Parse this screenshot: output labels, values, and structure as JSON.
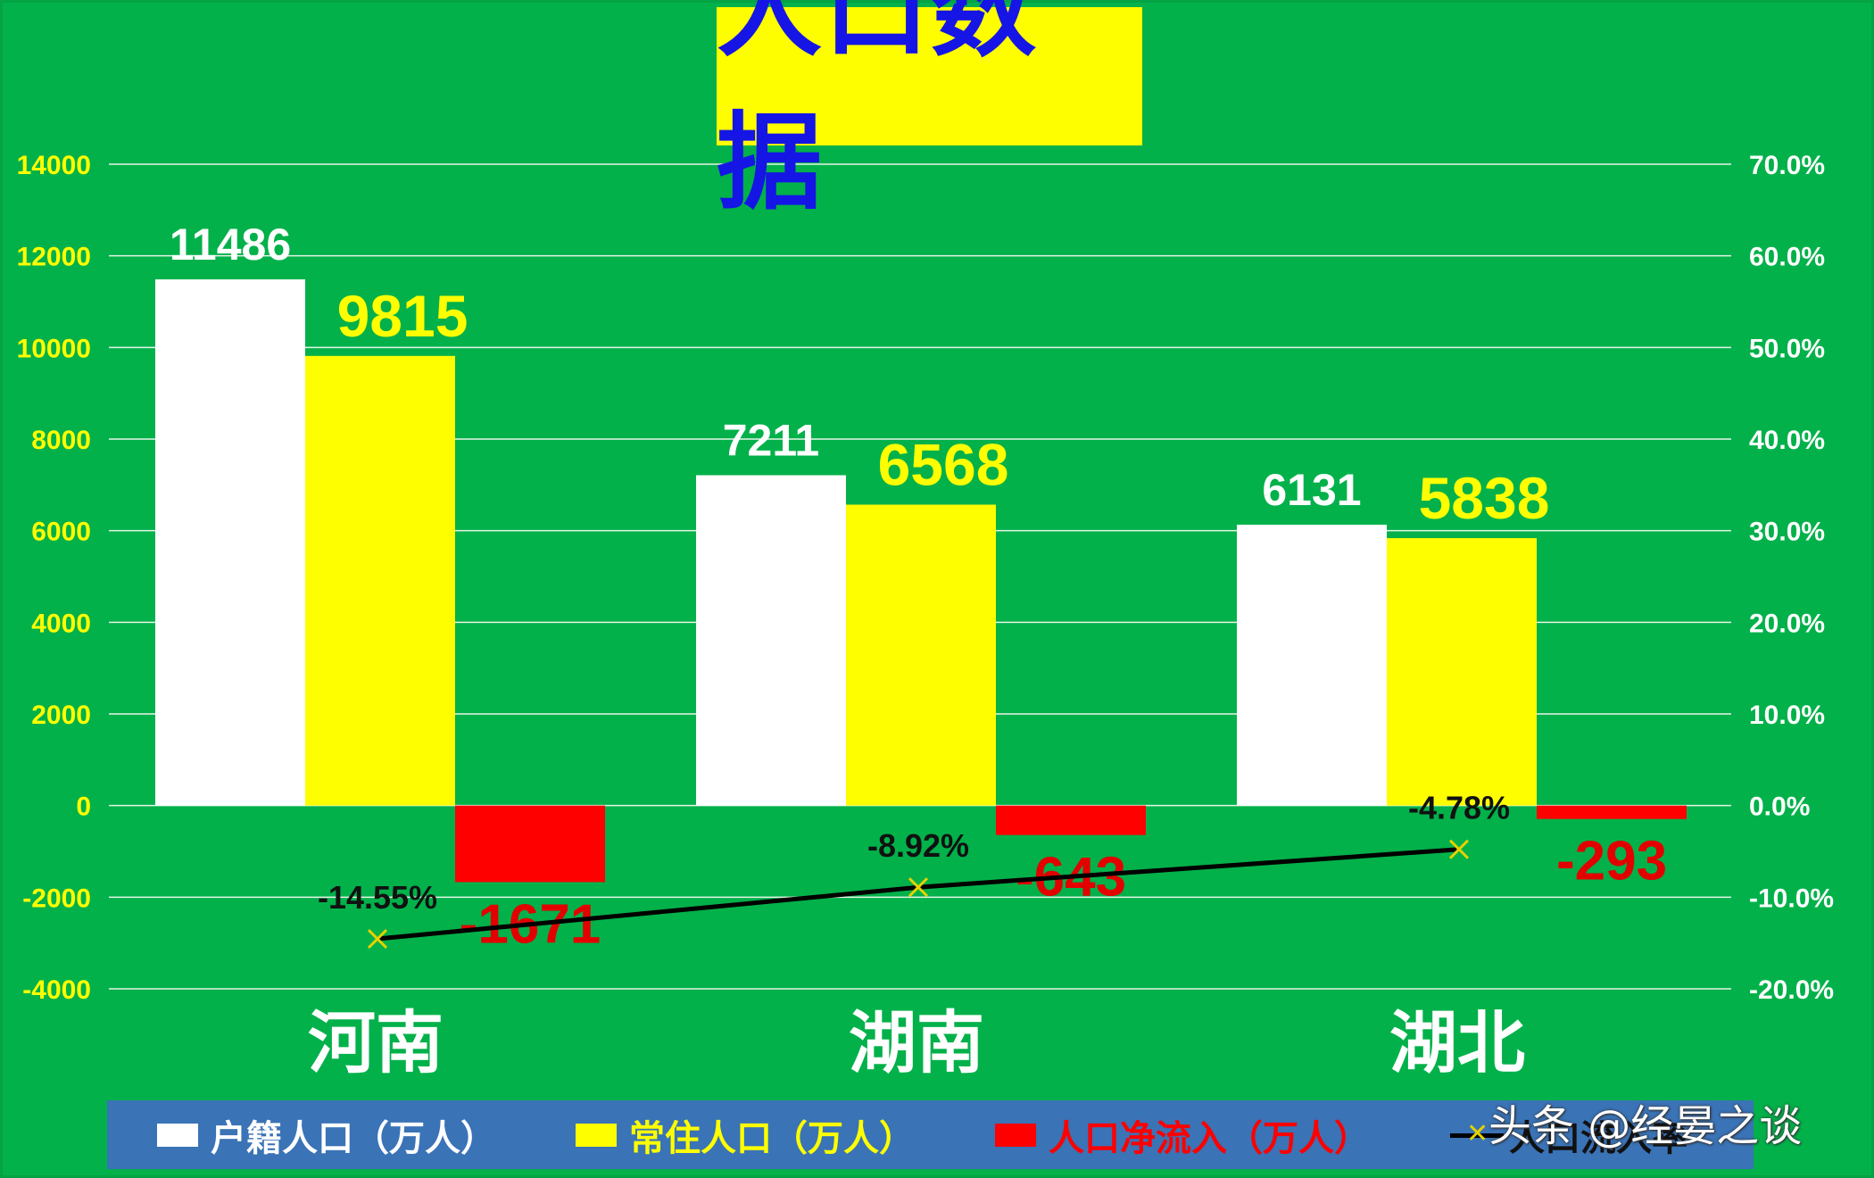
{
  "title": "人口数据",
  "watermark": "头条 @经晏之谈",
  "colors": {
    "background": "#02b14a",
    "grid": "#e8f4e8",
    "left_axis_text": "#fefe00",
    "right_axis_text": "#ffffff",
    "hukou_bar": "#ffffff",
    "resident_bar": "#fefe00",
    "net_inflow_bar": "#fe0000",
    "rate_line": "#000000",
    "rate_marker": "#e5d200",
    "legend_bg": "#3a73b6"
  },
  "legend": [
    {
      "label": "户籍人口（万人）",
      "kind": "bar",
      "color": "#ffffff"
    },
    {
      "label": "常住人口（万人）",
      "kind": "bar",
      "color": "#fefe00"
    },
    {
      "label": "人口净流入（万人）",
      "kind": "bar",
      "color": "#fe0000"
    },
    {
      "label": "人口流入率",
      "kind": "line",
      "color": "#000000"
    }
  ],
  "chart_data": {
    "type": "bar",
    "categories": [
      "河南",
      "湖南",
      "湖北"
    ],
    "series": [
      {
        "name": "户籍人口（万人）",
        "values": [
          11486,
          7211,
          6131
        ],
        "axis": "left"
      },
      {
        "name": "常住人口（万人）",
        "values": [
          9815,
          6568,
          5838
        ],
        "axis": "left"
      },
      {
        "name": "人口净流入（万人）",
        "values": [
          -1671,
          -643,
          -293
        ],
        "axis": "left"
      },
      {
        "name": "人口流入率",
        "type": "line",
        "values": [
          -14.55,
          -8.92,
          -4.78
        ],
        "labels": [
          "-14.55%",
          "-8.92%",
          "-4.78%"
        ],
        "axis": "right"
      }
    ],
    "ylim": [
      -4000,
      14000
    ],
    "yticks": [
      -4000,
      -2000,
      0,
      2000,
      4000,
      6000,
      8000,
      10000,
      12000,
      14000
    ],
    "y2lim": [
      -20,
      70
    ],
    "y2ticks": [
      "-20.0%",
      "-10.0%",
      "0.0%",
      "10.0%",
      "20.0%",
      "30.0%",
      "40.0%",
      "50.0%",
      "60.0%",
      "70.0%"
    ],
    "grid": true,
    "legend_position": "bottom"
  }
}
